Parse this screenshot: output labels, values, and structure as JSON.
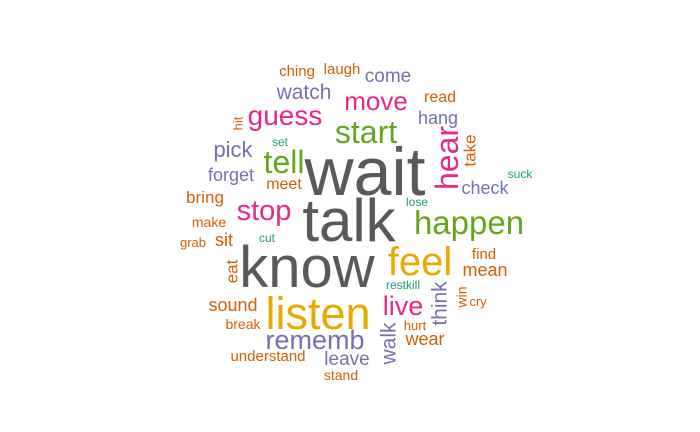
{
  "palette": {
    "gray": "#595959",
    "orange": "#d95f02",
    "purple": "#7570b3",
    "pink": "#e7298a",
    "green": "#66a61e",
    "gold": "#e6ab02",
    "teal": "#1b9e77"
  },
  "words": [
    {
      "text": "wait",
      "color": "gray",
      "rank": 1
    },
    {
      "text": "talk",
      "color": "gray",
      "rank": 1
    },
    {
      "text": "know",
      "color": "gray",
      "rank": 1
    },
    {
      "text": "listen",
      "color": "gold",
      "rank": 2
    },
    {
      "text": "feel",
      "color": "gold",
      "rank": 2
    },
    {
      "text": "happen",
      "color": "green",
      "rank": 3
    },
    {
      "text": "start",
      "color": "green",
      "rank": 3
    },
    {
      "text": "tell",
      "color": "green",
      "rank": 3
    },
    {
      "text": "hear",
      "color": "pink",
      "rank": 3
    },
    {
      "text": "stop",
      "color": "pink",
      "rank": 4
    },
    {
      "text": "guess",
      "color": "pink",
      "rank": 4
    },
    {
      "text": "move",
      "color": "pink",
      "rank": 4
    },
    {
      "text": "live",
      "color": "pink",
      "rank": 4
    },
    {
      "text": "rememb",
      "color": "purple",
      "rank": 4
    },
    {
      "text": "pick",
      "color": "purple",
      "rank": 5
    },
    {
      "text": "watch",
      "color": "purple",
      "rank": 5
    },
    {
      "text": "come",
      "color": "purple",
      "rank": 5
    },
    {
      "text": "walk",
      "color": "purple",
      "rank": 5
    },
    {
      "text": "think",
      "color": "purple",
      "rank": 5
    },
    {
      "text": "leave",
      "color": "purple",
      "rank": 5
    },
    {
      "text": "forget",
      "color": "purple",
      "rank": 6
    },
    {
      "text": "hang",
      "color": "purple",
      "rank": 6
    },
    {
      "text": "check",
      "color": "purple",
      "rank": 6
    },
    {
      "text": "sound",
      "color": "orange",
      "rank": 6
    },
    {
      "text": "wear",
      "color": "orange",
      "rank": 6
    },
    {
      "text": "mean",
      "color": "orange",
      "rank": 6
    },
    {
      "text": "take",
      "color": "orange",
      "rank": 6
    },
    {
      "text": "read",
      "color": "orange",
      "rank": 6
    },
    {
      "text": "bring",
      "color": "orange",
      "rank": 6
    },
    {
      "text": "meet",
      "color": "orange",
      "rank": 6
    },
    {
      "text": "sit",
      "color": "orange",
      "rank": 6
    },
    {
      "text": "eat",
      "color": "orange",
      "rank": 6
    },
    {
      "text": "find",
      "color": "orange",
      "rank": 7
    },
    {
      "text": "understand",
      "color": "orange",
      "rank": 7
    },
    {
      "text": "laugh",
      "color": "orange",
      "rank": 7
    },
    {
      "text": "ching",
      "color": "orange",
      "rank": 7
    },
    {
      "text": "make",
      "color": "orange",
      "rank": 7
    },
    {
      "text": "break",
      "color": "orange",
      "rank": 7
    },
    {
      "text": "stand",
      "color": "orange",
      "rank": 7
    },
    {
      "text": "win",
      "color": "orange",
      "rank": 7
    },
    {
      "text": "hurt",
      "color": "orange",
      "rank": 7
    },
    {
      "text": "grab",
      "color": "orange",
      "rank": 7
    },
    {
      "text": "cry",
      "color": "orange",
      "rank": 7
    },
    {
      "text": "hit",
      "color": "orange",
      "rank": 8
    },
    {
      "text": "set",
      "color": "teal",
      "rank": 8
    },
    {
      "text": "suck",
      "color": "teal",
      "rank": 8
    },
    {
      "text": "lose",
      "color": "teal",
      "rank": 8
    },
    {
      "text": "cut",
      "color": "teal",
      "rank": 8
    },
    {
      "text": "restkill",
      "color": "teal",
      "rank": 8
    }
  ]
}
